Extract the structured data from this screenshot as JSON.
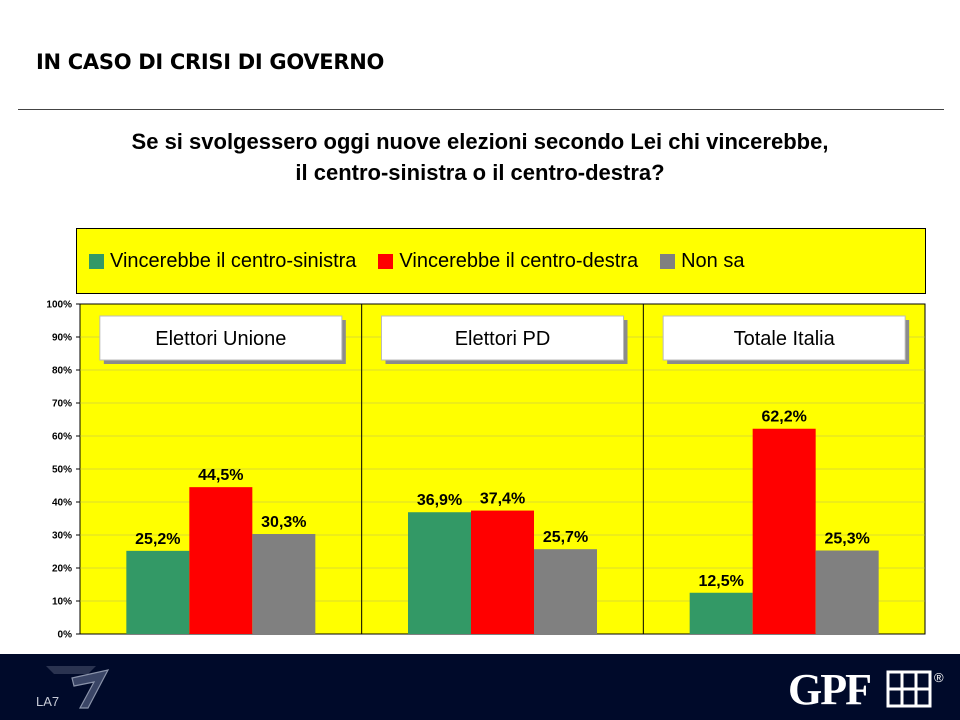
{
  "page": {
    "title": "IN CASO DI CRISI DI GOVERNO",
    "question_line1": "Se si svolgessero oggi nuove elezioni secondo Lei chi vincerebbe,",
    "question_line2": "il centro-sinistra o il centro-destra?"
  },
  "chart_data": {
    "type": "bar",
    "title": "",
    "xlabel": "",
    "ylabel": "",
    "ylim": [
      0,
      100
    ],
    "yticks": [
      "0%",
      "10%",
      "20%",
      "30%",
      "40%",
      "50%",
      "60%",
      "70%",
      "80%",
      "90%",
      "100%"
    ],
    "grid": true,
    "legend_position": "top",
    "categories": [
      "Elettori Unione",
      "Elettori PD",
      "Totale Italia"
    ],
    "series": [
      {
        "name": "Vincerebbe il centro-sinistra",
        "color": "#339966",
        "values": [
          25.2,
          36.9,
          12.5
        ],
        "labels": [
          "25,2%",
          "36,9%",
          "12,5%"
        ]
      },
      {
        "name": "Vincerebbe il centro-destra",
        "color": "#ff0000",
        "values": [
          44.5,
          37.4,
          62.2
        ],
        "labels": [
          "44,5%",
          "37,4%",
          "62,2%"
        ]
      },
      {
        "name": "Non sa",
        "color": "#808080",
        "values": [
          30.3,
          25.7,
          25.3
        ],
        "labels": [
          "30,3%",
          "25,7%",
          "25,3%"
        ]
      }
    ],
    "plot_background": "#ffff00"
  },
  "footer": {
    "left_logo": "LA7",
    "right_logo": "GPF",
    "right_logo_mark": "®",
    "background": "#000a2a"
  }
}
